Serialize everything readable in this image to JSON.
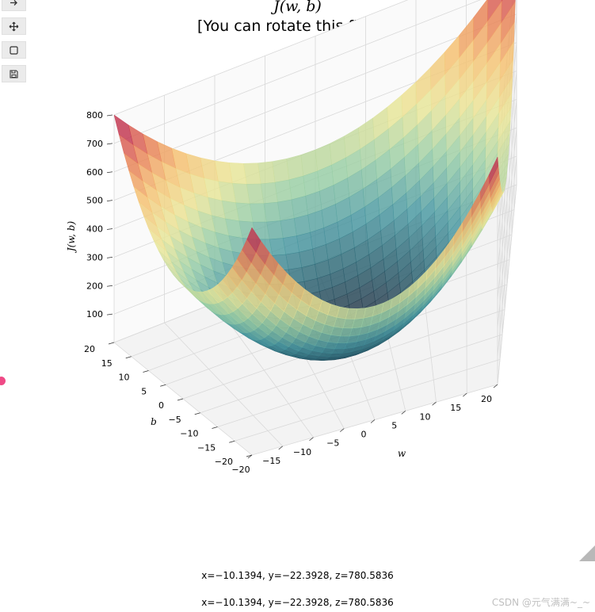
{
  "toolbar": {
    "icons": [
      "arrow-right-icon",
      "pan-move-icon",
      "zoom-rect-icon",
      "save-icon"
    ]
  },
  "title_main": "J(w, b)",
  "title_sub": "[You can rotate this figure]",
  "coords_top": "x=−10.1394, y=−22.3928, z=780.5836",
  "coords_bottom": "x=−10.1394,  y=−22.3928,  z=780.5836",
  "watermark": "CSDN @元气满满~_~",
  "chart_data": {
    "type": "surface",
    "title": "J(w, b)",
    "subtitle": "[You can rotate this figure]",
    "function": "J(w, b) = w^2 + b^2",
    "x": {
      "label": "w",
      "range": [
        -20,
        20
      ],
      "ticks": [
        -20,
        -15,
        -10,
        -5,
        0,
        5,
        10,
        15,
        20
      ]
    },
    "y": {
      "label": "b",
      "range": [
        -20,
        20
      ],
      "ticks": [
        -20,
        -15,
        -10,
        -5,
        0,
        5,
        10,
        15,
        20
      ]
    },
    "z": {
      "label": "J(w, b)",
      "range": [
        0,
        800
      ],
      "ticks": [
        100,
        200,
        300,
        400,
        500,
        600,
        700,
        800
      ]
    },
    "corner_values": [
      {
        "w": -20,
        "b": -20,
        "J": 800
      },
      {
        "w": 20,
        "b": -20,
        "J": 800
      },
      {
        "w": -20,
        "b": 20,
        "J": 800
      },
      {
        "w": 20,
        "b": 20,
        "J": 800
      }
    ],
    "minimum": {
      "w": 0,
      "b": 0,
      "J": 0
    },
    "colormap": "Spectral_r",
    "colors": {
      "low": "#1f2a3c",
      "mid": "#f1e59a",
      "high": "#9e0142"
    },
    "grid": true,
    "interactive_readout": {
      "x": -10.1394,
      "y": -22.3928,
      "z": 780.5836
    }
  }
}
